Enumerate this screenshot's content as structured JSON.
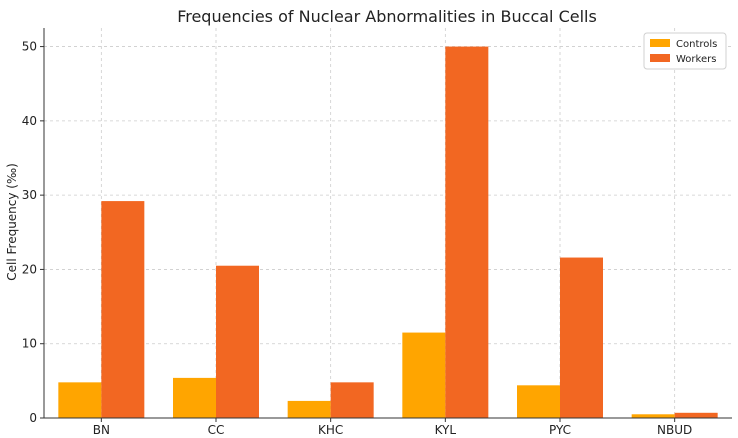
{
  "chart_data": {
    "type": "bar",
    "title": "Frequencies of Nuclear Abnormalities in Buccal Cells",
    "xlabel": "",
    "ylabel": "Cell Frequency (‰)",
    "categories": [
      "BN",
      "CC",
      "KHC",
      "KYL",
      "PYC",
      "NBUD"
    ],
    "series": [
      {
        "name": "Controls",
        "values": [
          4.8,
          5.4,
          2.3,
          11.5,
          4.4,
          0.5
        ],
        "color": "#FFA500"
      },
      {
        "name": "Workers",
        "values": [
          29.2,
          20.5,
          4.8,
          50.0,
          21.6,
          0.7
        ],
        "color": "#F26722"
      }
    ],
    "ylim": [
      0,
      52.5
    ],
    "yticks": [
      0,
      10,
      20,
      30,
      40,
      50
    ],
    "grid": true,
    "legend_position": "top-right"
  }
}
